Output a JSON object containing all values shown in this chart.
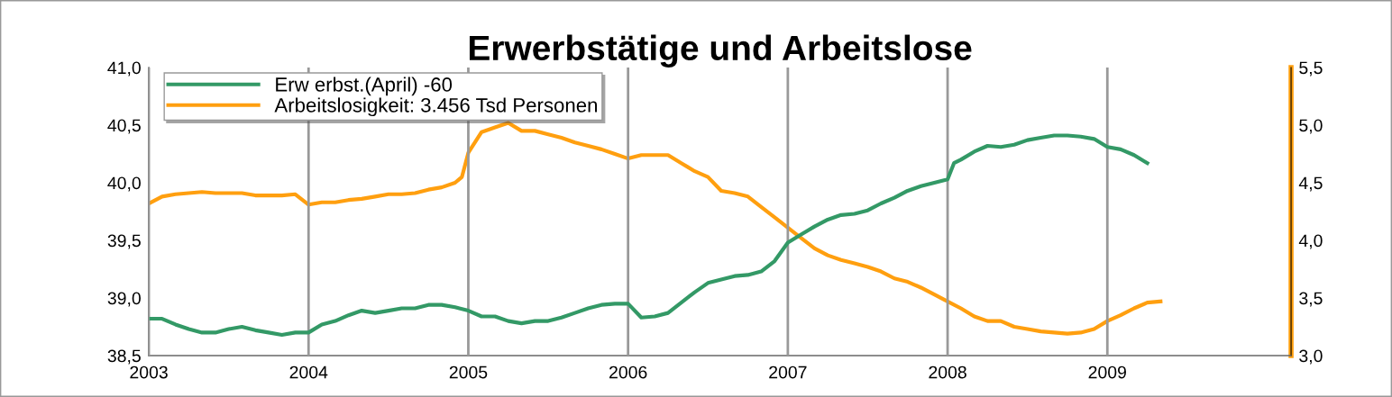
{
  "chart_data": {
    "type": "line",
    "title": "Erwerbstätige und Arbeitslose",
    "xlim": [
      2003,
      2010.15
    ],
    "xticks": [
      2003,
      2004,
      2005,
      2006,
      2007,
      2008,
      2009
    ],
    "ylim": [
      38.5,
      41.0
    ],
    "yticks": [
      {
        "value": 38.5,
        "label": "38,5"
      },
      {
        "value": 39.0,
        "label": "39,0"
      },
      {
        "value": 39.5,
        "label": "39,5"
      },
      {
        "value": 40.0,
        "label": "40,0"
      },
      {
        "value": 40.5,
        "label": "40,5"
      },
      {
        "value": 41.0,
        "label": "41,0"
      }
    ],
    "y2lim": [
      3.0,
      5.5
    ],
    "y2ticks": [
      {
        "value": 3.0,
        "label": "3,0"
      },
      {
        "value": 3.5,
        "label": "3,5"
      },
      {
        "value": 4.0,
        "label": "4,0"
      },
      {
        "value": 4.5,
        "label": "4,5"
      },
      {
        "value": 5.0,
        "label": "5,0"
      },
      {
        "value": 5.5,
        "label": "5,5"
      }
    ],
    "grid": "x",
    "legend": "top left",
    "marker": "none",
    "line_style": "solid",
    "series": [
      {
        "name": "Erw erbst.(April) -60",
        "color": "#339966",
        "axis": "y",
        "x": [
          2003,
          2003.083,
          2003.167,
          2003.25,
          2003.333,
          2003.417,
          2003.5,
          2003.583,
          2003.667,
          2003.75,
          2003.833,
          2003.917,
          2004,
          2004.083,
          2004.167,
          2004.25,
          2004.333,
          2004.417,
          2004.5,
          2004.583,
          2004.667,
          2004.75,
          2004.833,
          2004.917,
          2005,
          2005.083,
          2005.167,
          2005.25,
          2005.333,
          2005.417,
          2005.5,
          2005.583,
          2005.667,
          2005.75,
          2005.833,
          2005.917,
          2006,
          2006.083,
          2006.167,
          2006.25,
          2006.333,
          2006.417,
          2006.5,
          2006.583,
          2006.667,
          2006.75,
          2006.833,
          2006.917,
          2007,
          2007.083,
          2007.167,
          2007.25,
          2007.333,
          2007.417,
          2007.5,
          2007.583,
          2007.667,
          2007.75,
          2007.833,
          2007.917,
          2008,
          2008.04,
          2008.083,
          2008.167,
          2008.25,
          2008.333,
          2008.417,
          2008.5,
          2008.583,
          2008.667,
          2008.75,
          2008.833,
          2008.917,
          2009,
          2009.083,
          2009.167,
          2009.25
        ],
        "values": [
          38.82,
          38.82,
          38.77,
          38.73,
          38.7,
          38.7,
          38.73,
          38.75,
          38.72,
          38.7,
          38.68,
          38.7,
          38.7,
          38.77,
          38.8,
          38.85,
          38.89,
          38.87,
          38.89,
          38.91,
          38.91,
          38.94,
          38.94,
          38.92,
          38.89,
          38.84,
          38.84,
          38.8,
          38.78,
          38.8,
          38.8,
          38.83,
          38.87,
          38.91,
          38.94,
          38.95,
          38.95,
          38.83,
          38.84,
          38.87,
          38.96,
          39.05,
          39.13,
          39.16,
          39.19,
          39.2,
          39.23,
          39.32,
          39.48,
          39.55,
          39.62,
          39.68,
          39.72,
          39.73,
          39.76,
          39.82,
          39.87,
          39.93,
          39.97,
          40.0,
          40.03,
          40.17,
          40.2,
          40.27,
          40.32,
          40.31,
          40.33,
          40.37,
          40.39,
          40.41,
          40.41,
          40.4,
          40.38,
          40.31,
          40.29,
          40.24,
          40.17
        ]
      },
      {
        "name": "Arbeitslosigkeit: 3.456 Tsd Personen",
        "color": "#ff9f0f",
        "axis": "y2",
        "x": [
          2003,
          2003.083,
          2003.167,
          2003.25,
          2003.333,
          2003.417,
          2003.5,
          2003.583,
          2003.667,
          2003.75,
          2003.833,
          2003.917,
          2004,
          2004.083,
          2004.167,
          2004.25,
          2004.333,
          2004.417,
          2004.5,
          2004.583,
          2004.667,
          2004.75,
          2004.833,
          2004.917,
          2004.96,
          2005,
          2005.083,
          2005.167,
          2005.25,
          2005.333,
          2005.417,
          2005.5,
          2005.583,
          2005.667,
          2005.75,
          2005.833,
          2005.917,
          2006,
          2006.083,
          2006.167,
          2006.25,
          2006.333,
          2006.417,
          2006.5,
          2006.583,
          2006.667,
          2006.75,
          2006.833,
          2006.917,
          2007,
          2007.083,
          2007.167,
          2007.25,
          2007.333,
          2007.417,
          2007.5,
          2007.583,
          2007.667,
          2007.75,
          2007.833,
          2007.917,
          2008,
          2008.083,
          2008.167,
          2008.25,
          2008.333,
          2008.417,
          2008.5,
          2008.583,
          2008.667,
          2008.75,
          2008.833,
          2008.917,
          2009,
          2009.083,
          2009.167,
          2009.25,
          2009.333
        ],
        "values": [
          4.32,
          4.38,
          4.4,
          4.41,
          4.42,
          4.41,
          4.41,
          4.41,
          4.39,
          4.39,
          4.39,
          4.4,
          4.31,
          4.33,
          4.33,
          4.35,
          4.36,
          4.38,
          4.4,
          4.4,
          4.41,
          4.44,
          4.46,
          4.5,
          4.55,
          4.76,
          4.94,
          4.98,
          5.02,
          4.95,
          4.95,
          4.92,
          4.89,
          4.85,
          4.82,
          4.79,
          4.75,
          4.71,
          4.74,
          4.74,
          4.74,
          4.67,
          4.6,
          4.55,
          4.43,
          4.41,
          4.38,
          4.29,
          4.2,
          4.11,
          4.02,
          3.93,
          3.87,
          3.83,
          3.8,
          3.77,
          3.73,
          3.67,
          3.64,
          3.59,
          3.53,
          3.47,
          3.41,
          3.34,
          3.3,
          3.3,
          3.25,
          3.23,
          3.21,
          3.2,
          3.19,
          3.2,
          3.23,
          3.3,
          3.35,
          3.41,
          3.46,
          3.47
        ]
      }
    ]
  }
}
